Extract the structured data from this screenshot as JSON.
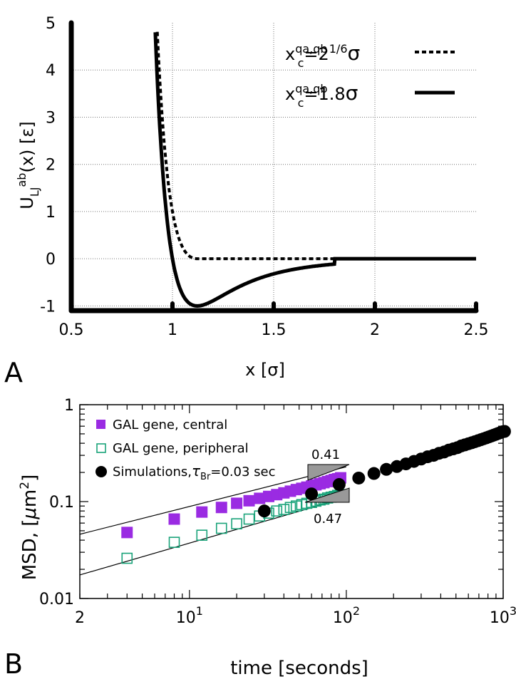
{
  "chart_data": [
    {
      "panel_label": "A",
      "type": "line",
      "xlabel": "x [σ]",
      "ylabel": {
        "base": "U",
        "sub": "LJ",
        "sup": "ab",
        "tail": "(x) [ε]"
      },
      "xlim": [
        0.5,
        2.5
      ],
      "ylim": [
        -1.1,
        5
      ],
      "x_ticks": [
        0.5,
        1,
        1.5,
        2,
        2.5
      ],
      "x_tick_labels": [
        "0.5",
        "1",
        "1.5",
        "2",
        "2.5"
      ],
      "y_ticks": [
        -1,
        0,
        1,
        2,
        3,
        4,
        5
      ],
      "y_tick_labels": [
        "-1",
        "0",
        "1",
        "2",
        "3",
        "4",
        "5"
      ],
      "grid": true,
      "legend_position": "top-right",
      "series": [
        {
          "name": "x_c^{q_a,q_b}=2^{1/6}σ",
          "legend": {
            "x": "x",
            "sup": "qa,qb",
            "sub": "c",
            "eq": "=2",
            "sup2": "1/6",
            "tail": "σ"
          },
          "style": "dashed",
          "cutoff": 1.1225,
          "shifted": true
        },
        {
          "name": "x_c^{q_a,q_b}=1.8σ",
          "legend": {
            "x": "x",
            "sup": "qa,qb",
            "sub": "c",
            "eq": "=1.8",
            "tail": "σ"
          },
          "style": "solid",
          "cutoff": 1.8,
          "shifted": false
        }
      ]
    },
    {
      "panel_label": "B",
      "type": "scatter",
      "xlabel": "time [seconds]",
      "ylabel": {
        "text": "MSD, [",
        "mu": "μ",
        "unit": "m",
        "sup": "2",
        "close": "]"
      },
      "x_scale": "log",
      "y_scale": "log",
      "xlim": [
        2,
        1000
      ],
      "ylim": [
        0.01,
        1
      ],
      "x_tick_labels": [
        {
          "value": 2,
          "text": "2"
        },
        {
          "value": 10,
          "base": "10",
          "exp": "1"
        },
        {
          "value": 100,
          "base": "10",
          "exp": "2"
        },
        {
          "value": 1000,
          "base": "10",
          "exp": "3"
        }
      ],
      "y_tick_labels": [
        {
          "value": 0.01,
          "text": "0.01"
        },
        {
          "value": 0.1,
          "text": "0.1"
        },
        {
          "value": 1,
          "text": "1"
        }
      ],
      "grid": false,
      "legend_position": "top-left",
      "series": [
        {
          "name": "GAL gene, central",
          "marker": "filled-square",
          "color": "#9a2be2",
          "x": [
            4,
            8,
            12,
            16,
            20,
            24,
            28,
            32,
            36,
            40,
            44,
            48,
            52,
            56,
            60,
            64,
            68,
            72,
            76,
            80,
            84,
            88,
            92
          ],
          "y": [
            0.048,
            0.066,
            0.078,
            0.087,
            0.096,
            0.102,
            0.108,
            0.113,
            0.118,
            0.123,
            0.128,
            0.133,
            0.137,
            0.141,
            0.145,
            0.149,
            0.153,
            0.157,
            0.161,
            0.165,
            0.169,
            0.172,
            0.176
          ]
        },
        {
          "name": "GAL gene, peripheral",
          "marker": "open-square",
          "color": "#1aa37a",
          "x": [
            4,
            8,
            12,
            16,
            20,
            24,
            28,
            32,
            36,
            40,
            44,
            48,
            52,
            56,
            60,
            64,
            68,
            72,
            76,
            80,
            84,
            88,
            92
          ],
          "y": [
            0.026,
            0.038,
            0.045,
            0.053,
            0.059,
            0.066,
            0.071,
            0.076,
            0.08,
            0.083,
            0.087,
            0.09,
            0.093,
            0.096,
            0.098,
            0.101,
            0.104,
            0.106,
            0.109,
            0.111,
            0.113,
            0.116,
            0.118
          ]
        },
        {
          "name": "Simulations, τ_Br=0.03 sec",
          "legend": {
            "text": "Simulations,",
            "tau": "τ",
            "sub": "Br",
            "tail": "=0.03 sec"
          },
          "marker": "filled-circle",
          "color": "#000000",
          "x": [
            30,
            60,
            90,
            120,
            150,
            180,
            210,
            240,
            270,
            300,
            330,
            360,
            390,
            420,
            450,
            480,
            510,
            540,
            570,
            600,
            630,
            660,
            690,
            720,
            750,
            780,
            810,
            840,
            870,
            900,
            930,
            960,
            990,
            1020
          ],
          "y": [
            0.08,
            0.12,
            0.15,
            0.175,
            0.195,
            0.215,
            0.23,
            0.245,
            0.26,
            0.275,
            0.29,
            0.3,
            0.315,
            0.325,
            0.34,
            0.35,
            0.36,
            0.375,
            0.385,
            0.395,
            0.405,
            0.415,
            0.425,
            0.435,
            0.445,
            0.455,
            0.465,
            0.475,
            0.485,
            0.495,
            0.505,
            0.515,
            0.525,
            0.53
          ]
        }
      ],
      "fit_lines": [
        {
          "slope": 0.41,
          "label": "0.41",
          "through": [
            2,
            0.046
          ]
        },
        {
          "slope": 0.47,
          "label": "0.47",
          "through": [
            2,
            0.0175
          ]
        }
      ]
    }
  ]
}
